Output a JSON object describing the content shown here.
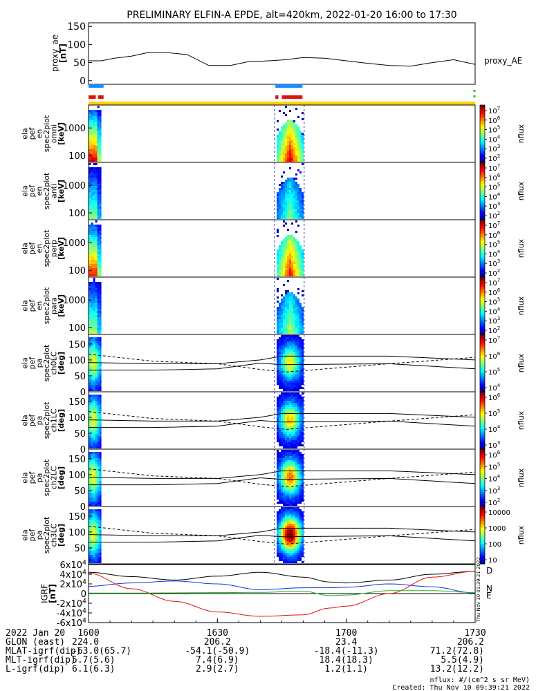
{
  "chart_data": {
    "type": "multi-panel spectrogram",
    "title": "PRELIMINARY ELFIN-A EPDE, alt=420km, 2022-01-20 16:00 to 17:30",
    "colors": {
      "bar_blue": "#1a8cff",
      "bar_red": "#e01010",
      "bar_yellow": "#ffd000",
      "bar_green": "#20c020",
      "bx": "#000000",
      "by": "#1030e0",
      "bz": "#e01010",
      "bw": "#20b020"
    },
    "proxy_ae": {
      "ylabel": "proxy_ae\n[nT]",
      "right_label": "proxy_AE",
      "yticks": [
        "150",
        "100",
        "50",
        "0"
      ],
      "ylim": [
        -10,
        160
      ],
      "x_min": [
        0,
        3,
        6,
        10,
        14,
        18,
        23,
        28,
        33,
        37,
        42,
        46,
        50,
        55,
        60,
        65,
        70,
        75,
        80,
        85,
        90
      ],
      "values": [
        55,
        55,
        62,
        68,
        78,
        78,
        72,
        42,
        42,
        52,
        55,
        58,
        64,
        62,
        55,
        48,
        42,
        40,
        50,
        58,
        45
      ]
    },
    "spectrograms": [
      {
        "name": "omni",
        "ylabel": "ela\npef\nen\nspec2plot\nomni\n[keV]",
        "yticks": [
          "1000",
          "100"
        ],
        "clabel": "nflux",
        "cticks": [
          "10^7",
          "10^6",
          "10^5",
          "10^4",
          "10^3",
          "10^2"
        ]
      },
      {
        "name": "anti",
        "ylabel": "ela\npef\nen\nspec2plot\nanti\n[keV]",
        "yticks": [
          "1000",
          "100"
        ],
        "clabel": "nflux",
        "cticks": [
          "10^7",
          "10^6",
          "10^5",
          "10^4",
          "10^3",
          "10^2"
        ]
      },
      {
        "name": "perp",
        "ylabel": "ela\npef\nen\nspec2plot\nperp\n[keV]",
        "yticks": [
          "1000",
          "100"
        ],
        "clabel": "nflux",
        "cticks": [
          "10^7",
          "10^6",
          "10^5",
          "10^4",
          "10^3",
          "10^2"
        ]
      },
      {
        "name": "para",
        "ylabel": "ela\npef\nen\nspec2plot\npara\n[keV]",
        "yticks": [
          "1000",
          "100"
        ],
        "clabel": "nflux",
        "cticks": [
          "10^7",
          "10^6",
          "10^5",
          "10^4",
          "10^3",
          "10^2"
        ]
      }
    ],
    "pitch_angle": [
      {
        "name": "ch0LC",
        "ylabel": "ela\npef\npa\nspec2plot\nch0LC\n[deg]",
        "yticks": [
          "150",
          "100",
          "50",
          "0"
        ],
        "clabel": "nflux",
        "cticks": [
          "10^7",
          "10^6",
          "10^5",
          "10^4"
        ]
      },
      {
        "name": "ch1LC",
        "ylabel": "ela\npef\npa\nspec2plot\nch1LC\n[deg]",
        "yticks": [
          "150",
          "100",
          "50",
          "0"
        ],
        "clabel": "nflux",
        "cticks": [
          "10^6",
          "10^5",
          "10^4",
          "10^3"
        ]
      },
      {
        "name": "ch2LC",
        "ylabel": "ela\npef\npa\nspec2plot\nch2LC\n[deg]",
        "yticks": [
          "150",
          "100",
          "50",
          "0"
        ],
        "clabel": "nflux",
        "cticks": [
          "10^6",
          "10^5",
          "10^4",
          "10^3",
          "10^2"
        ]
      },
      {
        "name": "ch3LC",
        "ylabel": "ela\npef\npa\nspec2plot\nch3LC\n[deg]",
        "yticks": [
          "150",
          "100",
          "50"
        ],
        "clabel": "nflux",
        "cticks": [
          "10000",
          "1000",
          "100",
          "10"
        ]
      }
    ],
    "igrf": {
      "ylabel": "IGRF\n[nT]",
      "yticks": [
        "6x10^4",
        "4x10^4",
        "2x10^4",
        "0",
        "-2x10^4",
        "-4x10^4",
        "-6x10^4"
      ],
      "ylim": [
        -60000,
        60000
      ],
      "legend": [
        "D",
        "N",
        "E"
      ],
      "x_min": [
        0,
        10,
        20,
        30,
        40,
        50,
        56,
        60,
        70,
        80,
        90
      ],
      "series": [
        {
          "name": "D",
          "values": [
            44000,
            35000,
            28000,
            36000,
            44000,
            34000,
            24000,
            22000,
            28000,
            40000,
            46000
          ]
        },
        {
          "name": "N",
          "values": [
            15000,
            22000,
            26000,
            20000,
            8000,
            12000,
            12000,
            13000,
            20000,
            14000,
            1000
          ]
        },
        {
          "name": "E",
          "values": [
            42000,
            10000,
            -16000,
            -38000,
            -47000,
            -44000,
            -30000,
            -26000,
            0,
            34000,
            46000
          ]
        },
        {
          "name": "",
          "values": [
            1000,
            1000,
            1500,
            2000,
            2500,
            5000,
            -4000,
            -3000,
            6000,
            6000,
            2000
          ]
        }
      ]
    },
    "xaxis": {
      "date_label": "2022 Jan 20",
      "ticks": [
        "1600",
        "1630",
        "1700",
        "1730"
      ],
      "rows": [
        {
          "label": "GLON (east)",
          "values": [
            "224.0",
            "206.2",
            "23.4",
            "206.2"
          ]
        },
        {
          "label": "MLAT-igrf(dip)",
          "values": [
            "-63.0(65.7)",
            "-54.1(-50.9)",
            "-18.4(-11.3)",
            "71.2(72.8)"
          ]
        },
        {
          "label": "MLT-igrf(dip)",
          "values": [
            "5.7(5.6)",
            "7.4(6.9)",
            "18.4(18.3)",
            "5.5(4.9)"
          ]
        },
        {
          "label": "L-igrf(dip)",
          "values": [
            "6.1(6.3)",
            "2.9(2.7)",
            "1.2(1.1)",
            "13.2(12.2)"
          ]
        }
      ]
    },
    "footer": {
      "units": "nflux: #/(cm^2 s sr MeV)",
      "created": "Created: Thu Nov 10 09:39:21 2022",
      "side_stamp": "Thu Nov 10 01:39:21 2022"
    }
  }
}
